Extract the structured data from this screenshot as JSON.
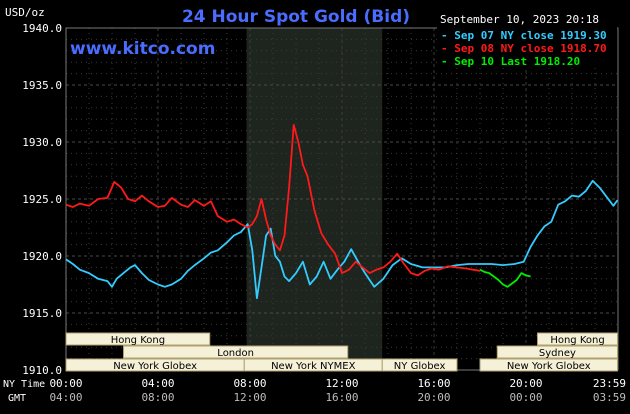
{
  "header": {
    "unit_label": "USD/oz",
    "title": "24 Hour Spot Gold (Bid)",
    "datetime": "September 10, 2023 20:18",
    "watermark": "www.kitco.com"
  },
  "colors": {
    "background": "#000000",
    "plot_bg": "#000000",
    "grid": "#3a3a3a",
    "highlight": "#1e241e",
    "text": "#ffffff",
    "title": "#4a6cff",
    "watermark": "#4a6cff",
    "session_fill": "#f5f0d8",
    "session_text": "#000000",
    "gmt_text": "#bdbdbd"
  },
  "chart_data": {
    "type": "line",
    "title": "24 Hour Spot Gold (Bid)",
    "ylabel": "USD/oz",
    "ylim": [
      1910,
      1940
    ],
    "y_ticks": [
      "1940.0",
      "1935.0",
      "1930.0",
      "1925.0",
      "1920.0",
      "1915.0",
      "1910.0"
    ],
    "x_ticks_ny": [
      "00:00",
      "04:00",
      "08:00",
      "12:00",
      "16:00",
      "20:00",
      "23:59"
    ],
    "x_ticks_gmt": [
      "04:00",
      "08:00",
      "12:00",
      "16:00",
      "20:00",
      "00:00",
      "03:59"
    ],
    "x_row_labels": {
      "ny": "NY Time",
      "gmt": "GMT"
    },
    "highlight_range_hours": [
      7.85,
      13.75
    ],
    "legend": [
      {
        "label": "Sep 07 NY close 1919.30",
        "color": "#33ccff"
      },
      {
        "label": "Sep 08 NY close 1918.70",
        "color": "#ff1a1a"
      },
      {
        "label": "Sep 10 Last 1918.20",
        "color": "#00ee00"
      }
    ],
    "series": [
      {
        "name": "Sep 07 NY close 1919.30",
        "color": "#33ccff",
        "x": [
          0,
          0.3,
          0.6,
          1.0,
          1.4,
          1.8,
          2.0,
          2.2,
          2.5,
          2.8,
          3.0,
          3.3,
          3.6,
          4.0,
          4.3,
          4.6,
          5.0,
          5.3,
          5.6,
          6.0,
          6.3,
          6.6,
          7.0,
          7.3,
          7.6,
          7.9,
          8.1,
          8.3,
          8.5,
          8.7,
          8.9,
          9.1,
          9.3,
          9.5,
          9.7,
          10.0,
          10.3,
          10.6,
          10.9,
          11.2,
          11.5,
          11.8,
          12.1,
          12.4,
          12.7,
          13.0,
          13.4,
          13.8,
          14.2,
          14.6,
          15.0,
          15.5,
          16.0,
          16.5,
          17.0,
          17.5,
          18.0,
          18.5,
          19.0,
          19.5,
          19.9,
          20.2,
          20.5,
          20.8,
          21.1,
          21.4,
          21.7,
          22.0,
          22.3,
          22.6,
          22.9,
          23.2,
          23.5,
          23.8,
          23.98
        ],
        "y": [
          1919.7,
          1919.3,
          1918.8,
          1918.5,
          1918.0,
          1917.8,
          1917.3,
          1918.0,
          1918.5,
          1919.0,
          1919.2,
          1918.5,
          1917.9,
          1917.5,
          1917.3,
          1917.5,
          1918.0,
          1918.7,
          1919.2,
          1919.8,
          1920.3,
          1920.5,
          1921.2,
          1921.8,
          1922.1,
          1922.8,
          1920.5,
          1916.3,
          1919.0,
          1921.8,
          1922.4,
          1920.0,
          1919.5,
          1918.2,
          1917.8,
          1918.5,
          1919.5,
          1917.5,
          1918.2,
          1919.5,
          1918.0,
          1918.8,
          1919.5,
          1920.6,
          1919.5,
          1918.5,
          1917.3,
          1918.0,
          1919.2,
          1919.8,
          1919.3,
          1919.0,
          1919.0,
          1919.0,
          1919.2,
          1919.3,
          1919.3,
          1919.3,
          1919.2,
          1919.3,
          1919.5,
          1920.8,
          1921.8,
          1922.6,
          1923.0,
          1924.5,
          1924.8,
          1925.3,
          1925.2,
          1925.7,
          1926.6,
          1926.0,
          1925.2,
          1924.4,
          1924.9
        ]
      },
      {
        "name": "Sep 08 NY close 1918.70",
        "color": "#ff1a1a",
        "x": [
          0,
          0.3,
          0.6,
          1.0,
          1.4,
          1.8,
          2.1,
          2.4,
          2.7,
          3.0,
          3.3,
          3.6,
          4.0,
          4.3,
          4.6,
          5.0,
          5.3,
          5.6,
          6.0,
          6.3,
          6.6,
          7.0,
          7.3,
          7.6,
          7.9,
          8.1,
          8.3,
          8.5,
          8.7,
          8.9,
          9.1,
          9.3,
          9.5,
          9.7,
          9.9,
          10.1,
          10.3,
          10.5,
          10.8,
          11.1,
          11.4,
          11.7,
          12.0,
          12.3,
          12.6,
          12.9,
          13.2,
          13.5,
          13.8,
          14.1,
          14.4,
          14.7,
          15.0,
          15.3,
          15.6,
          15.9,
          16.2,
          16.6,
          17.0,
          17.4,
          17.7,
          18.0
        ],
        "y": [
          1924.5,
          1924.3,
          1924.6,
          1924.4,
          1925.0,
          1925.1,
          1926.5,
          1926.0,
          1925.0,
          1924.8,
          1925.3,
          1924.8,
          1924.3,
          1924.4,
          1925.1,
          1924.5,
          1924.3,
          1924.9,
          1924.4,
          1924.8,
          1923.5,
          1923.0,
          1923.2,
          1922.8,
          1922.5,
          1922.8,
          1923.5,
          1925.0,
          1923.2,
          1921.8,
          1921.0,
          1920.5,
          1921.8,
          1926.0,
          1931.5,
          1930.0,
          1928.0,
          1927.0,
          1924.0,
          1922.0,
          1921.0,
          1920.2,
          1918.5,
          1918.8,
          1919.5,
          1919.0,
          1918.5,
          1918.8,
          1919.0,
          1919.5,
          1920.2,
          1919.3,
          1918.5,
          1918.3,
          1918.7,
          1918.9,
          1918.8,
          1919.1,
          1919.0,
          1918.9,
          1918.8,
          1918.7
        ]
      },
      {
        "name": "Sep 10 Last 1918.20",
        "color": "#00ee00",
        "x": [
          18.0,
          18.2,
          18.4,
          18.6,
          18.8,
          19.0,
          19.2,
          19.4,
          19.6,
          19.8,
          20.0,
          20.2
        ],
        "y": [
          1918.8,
          1918.6,
          1918.5,
          1918.2,
          1917.9,
          1917.5,
          1917.3,
          1917.6,
          1917.9,
          1918.5,
          1918.3,
          1918.2
        ]
      }
    ],
    "sessions": [
      {
        "label": "Hong Kong",
        "start": 0,
        "end": 6.25,
        "row": 0
      },
      {
        "label": "London",
        "start": 2.5,
        "end": 12.25,
        "row": 1
      },
      {
        "label": "New York Globex",
        "start": 0,
        "end": 7.75,
        "row": 2
      },
      {
        "label": "New York NYMEX",
        "start": 7.75,
        "end": 13.75,
        "row": 2
      },
      {
        "label": "NY Globex",
        "start": 13.75,
        "end": 17.0,
        "row": 2
      },
      {
        "label": "Hong Kong",
        "start": 20.5,
        "end": 23.98,
        "row": 0
      },
      {
        "label": "Sydney",
        "start": 18.75,
        "end": 23.98,
        "row": 1
      },
      {
        "label": "New York Globex",
        "start": 18.0,
        "end": 23.98,
        "row": 2
      }
    ]
  }
}
